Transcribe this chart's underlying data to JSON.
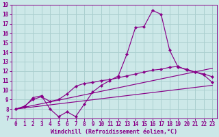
{
  "xlabel": "Windchill (Refroidissement éolien,°C)",
  "bg_color": "#cce8e8",
  "grid_color": "#aacfcf",
  "line_color": "#880088",
  "xlim": [
    -0.5,
    23.5
  ],
  "ylim": [
    7,
    19
  ],
  "xticks": [
    0,
    1,
    2,
    3,
    4,
    5,
    6,
    7,
    8,
    9,
    10,
    11,
    12,
    13,
    14,
    15,
    16,
    17,
    18,
    19,
    20,
    21,
    22,
    23
  ],
  "yticks": [
    7,
    8,
    9,
    10,
    11,
    12,
    13,
    14,
    15,
    16,
    17,
    18,
    19
  ],
  "series1_x": [
    0,
    1,
    2,
    3,
    4,
    5,
    6,
    7,
    8,
    9,
    10,
    11,
    12,
    13,
    14,
    15,
    16,
    17,
    18,
    19,
    20,
    21,
    22,
    23
  ],
  "series1_y": [
    8.0,
    8.2,
    9.2,
    9.4,
    8.0,
    7.2,
    7.7,
    7.2,
    8.5,
    9.8,
    10.5,
    11.0,
    11.5,
    13.8,
    16.6,
    16.7,
    18.4,
    18.0,
    14.2,
    12.4,
    12.2,
    11.9,
    11.6,
    10.8
  ],
  "series2_x": [
    0,
    1,
    2,
    3,
    4,
    5,
    6,
    7,
    8,
    9,
    10,
    11,
    12,
    13,
    14,
    15,
    16,
    17,
    18,
    19,
    20,
    21,
    22,
    23
  ],
  "series2_y": [
    8.0,
    8.3,
    9.0,
    9.3,
    8.8,
    9.0,
    9.6,
    10.4,
    10.7,
    10.8,
    11.0,
    11.1,
    11.3,
    11.5,
    11.7,
    11.9,
    12.1,
    12.2,
    12.4,
    12.5,
    12.1,
    11.9,
    11.7,
    11.4
  ],
  "series3_x": [
    0,
    23
  ],
  "series3_y": [
    8.0,
    12.3
  ],
  "series4_x": [
    0,
    23
  ],
  "series4_y": [
    8.0,
    10.5
  ],
  "tick_fontsize": 5.5,
  "xlabel_fontsize": 6.0
}
